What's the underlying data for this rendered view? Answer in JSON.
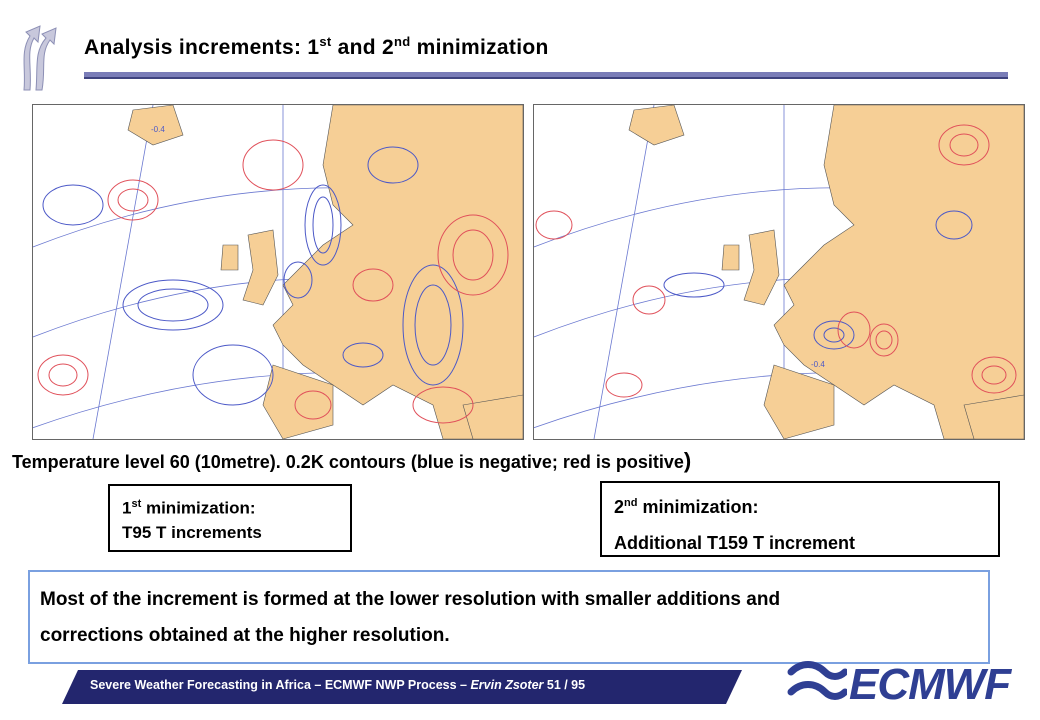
{
  "slide": {
    "title_main": "Analysis increments: 1",
    "title_sup1": "st",
    "title_mid": " and 2",
    "title_sup2": "nd",
    "title_end": " minimization"
  },
  "maps": [
    {
      "contour_label": "-0.4"
    },
    {
      "contour_label": "-0.4"
    }
  ],
  "caption": {
    "text": "Temperature level 60 (10metre).   0.2K contours (blue is negative; red is positive",
    "paren": ")"
  },
  "box1": {
    "line1_a": "1",
    "line1_sup": "st",
    "line1_b": " minimization:",
    "line2": "T95 T increments"
  },
  "box2": {
    "line1_a": "2",
    "line1_sup": "nd",
    "line1_b": " minimization:",
    "line2": "Additional T159 T increment"
  },
  "note": {
    "line1": "Most of the increment is formed at the lower resolution with smaller additions and",
    "line2": "corrections obtained at the higher resolution."
  },
  "footer": {
    "text_a": "Severe Weather Forecasting in Africa – ECMWF NWP Process – ",
    "author": "Ervin Zsoter",
    "page": "   51 / 95"
  },
  "brand": {
    "name": "ECMWF"
  },
  "colors": {
    "land": "#f6cf96",
    "positive": "#e0505a",
    "negative": "#4b58c7",
    "footer_bar": "#23266e",
    "brand": "#2f3f93"
  }
}
